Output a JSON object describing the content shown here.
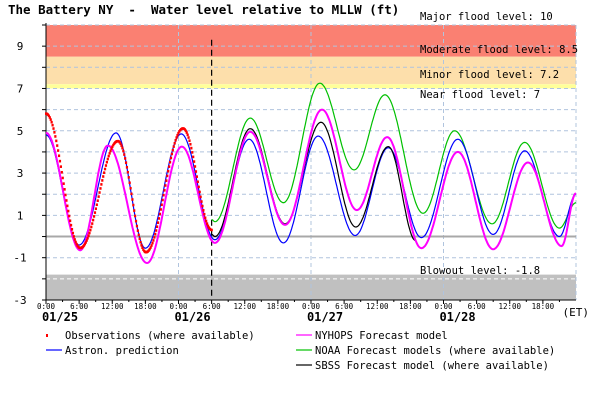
{
  "chart_data": {
    "type": "line",
    "title": "The Battery NY  -  Water level relative to MLLW (ft)",
    "x_start": "01/25 00:00",
    "x_end": "01/29 00:00",
    "x_unit_label": "(ET)",
    "day_labels": [
      "01/25",
      "01/26",
      "01/27",
      "01/28"
    ],
    "hour_labels": [
      "0:00",
      "6:00",
      "12:00",
      "18:00"
    ],
    "ylim": [
      -3,
      10
    ],
    "yticks": [
      9,
      7,
      5,
      3,
      1,
      -1,
      -3
    ],
    "grid": true,
    "now_marker": "01/26 06:00",
    "datum_line": 0,
    "thresholds": [
      {
        "label": "Major flood level: 10",
        "value": 10,
        "color": "#fa8072"
      },
      {
        "label": "Moderate flood level: 8.5",
        "value": 8.5,
        "color": "#fa8072"
      },
      {
        "label": "Minor flood level: 7.2",
        "value": 7.2,
        "color": "#fddfab"
      },
      {
        "label": "Near flood level: 7",
        "value": 7,
        "color": "#ffff99"
      },
      {
        "label": "Blowout level: -1.8",
        "value": -1.8,
        "color": "#c0c0c0"
      }
    ],
    "series": [
      {
        "name": "Observations (where available)",
        "color": "#ff0000",
        "style": "dots",
        "points": [
          [
            "01/25 00:00",
            5.8
          ],
          [
            "01/25 06:12",
            -0.55
          ],
          [
            "01/25 13:00",
            4.5
          ],
          [
            "01/25 18:06",
            -0.75
          ],
          [
            "01/26 00:48",
            5.1
          ],
          [
            "01/26 06:00",
            0.3
          ]
        ]
      },
      {
        "name": "Astron. prediction",
        "color": "#0000ff",
        "style": "line",
        "points": [
          [
            "01/25 00:00",
            4.8
          ],
          [
            "01/25 06:00",
            -0.4
          ],
          [
            "01/25 12:42",
            4.9
          ],
          [
            "01/25 18:00",
            -0.55
          ],
          [
            "01/26 00:30",
            4.85
          ],
          [
            "01/26 06:36",
            -0.15
          ],
          [
            "01/26 12:48",
            4.6
          ],
          [
            "01/26 19:00",
            -0.3
          ],
          [
            "01/27 01:18",
            4.75
          ],
          [
            "01/27 08:00",
            0.05
          ],
          [
            "01/27 14:00",
            4.2
          ],
          [
            "01/27 20:00",
            -0.05
          ],
          [
            "01/28 02:36",
            4.6
          ],
          [
            "01/28 09:00",
            0.1
          ],
          [
            "01/28 14:42",
            4.05
          ],
          [
            "01/28 21:00",
            0.0
          ],
          [
            "01/29 00:00",
            2.0
          ]
        ]
      },
      {
        "name": "NYHOPS Forecast model",
        "color": "#ff00ff",
        "style": "line",
        "points": [
          [
            "01/25 00:00",
            4.9
          ],
          [
            "01/25 06:12",
            -0.65
          ],
          [
            "01/25 11:12",
            4.3
          ],
          [
            "01/25 18:18",
            -1.25
          ],
          [
            "01/26 00:36",
            4.25
          ],
          [
            "01/26 06:36",
            -0.3
          ],
          [
            "01/26 13:00",
            4.95
          ],
          [
            "01/26 19:18",
            0.55
          ],
          [
            "01/27 02:00",
            6.0
          ],
          [
            "01/27 08:18",
            1.25
          ],
          [
            "01/27 13:48",
            4.7
          ],
          [
            "01/27 20:00",
            -0.55
          ],
          [
            "01/28 02:36",
            4.0
          ],
          [
            "01/28 09:00",
            -0.6
          ],
          [
            "01/28 15:18",
            3.5
          ],
          [
            "01/28 21:24",
            -0.45
          ],
          [
            "01/29 00:00",
            2.05
          ]
        ]
      },
      {
        "name": "NOAA Forecast models (where available)",
        "color": "#00c000",
        "style": "line",
        "points": [
          [
            "01/26 06:00",
            0.8
          ],
          [
            "01/26 06:36",
            0.7
          ],
          [
            "01/26 13:00",
            5.6
          ],
          [
            "01/26 19:00",
            1.6
          ],
          [
            "01/27 01:36",
            7.25
          ],
          [
            "01/27 07:48",
            3.15
          ],
          [
            "01/27 13:24",
            6.7
          ],
          [
            "01/27 20:18",
            1.1
          ],
          [
            "01/28 02:00",
            5.0
          ],
          [
            "01/28 08:48",
            0.6
          ],
          [
            "01/28 14:42",
            4.45
          ],
          [
            "01/28 21:00",
            0.4
          ],
          [
            "01/29 00:00",
            1.6
          ]
        ]
      },
      {
        "name": "SBSS Forecast model (where available)",
        "color": "#000000",
        "style": "line",
        "points": [
          [
            "01/26 06:00",
            0.1
          ],
          [
            "01/26 06:36",
            0.0
          ],
          [
            "01/26 13:00",
            5.1
          ],
          [
            "01/26 19:18",
            0.6
          ],
          [
            "01/27 01:48",
            5.4
          ],
          [
            "01/27 08:06",
            0.45
          ],
          [
            "01/27 14:00",
            4.25
          ],
          [
            "01/27 19:00",
            -0.2
          ]
        ]
      }
    ]
  }
}
